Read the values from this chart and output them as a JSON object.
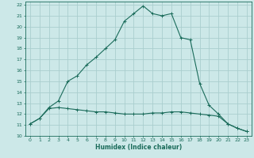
{
  "xlabel": "Humidex (Indice chaleur)",
  "bg_color": "#cce8e8",
  "line_color": "#1a6b5a",
  "grid_color": "#aacece",
  "xlim": [
    -0.5,
    23.5
  ],
  "ylim": [
    10,
    22.3
  ],
  "xticks": [
    0,
    1,
    2,
    3,
    4,
    5,
    6,
    7,
    8,
    9,
    10,
    11,
    12,
    13,
    14,
    15,
    16,
    17,
    18,
    19,
    20,
    21,
    22,
    23
  ],
  "yticks": [
    10,
    11,
    12,
    13,
    14,
    15,
    16,
    17,
    18,
    19,
    20,
    21,
    22
  ],
  "humidex_x": [
    0,
    1,
    2,
    3,
    4,
    5,
    6,
    7,
    8,
    9,
    10,
    11,
    12,
    13,
    14,
    15,
    16,
    17,
    18,
    19,
    20,
    21,
    22,
    23
  ],
  "humidex_y": [
    11.1,
    11.6,
    12.6,
    13.2,
    15.0,
    15.5,
    16.5,
    17.2,
    18.0,
    18.8,
    20.5,
    21.2,
    21.9,
    21.2,
    21.0,
    21.2,
    19.0,
    18.8,
    14.8,
    12.8,
    12.0,
    11.1,
    10.7,
    10.4
  ],
  "temp_x": [
    0,
    1,
    2,
    3,
    4,
    5,
    6,
    7,
    8,
    9,
    10,
    11,
    12,
    13,
    14,
    15,
    16,
    17,
    18,
    19,
    20,
    21,
    22,
    23
  ],
  "temp_y": [
    11.1,
    11.6,
    12.5,
    12.6,
    12.5,
    12.4,
    12.3,
    12.2,
    12.2,
    12.1,
    12.0,
    12.0,
    12.0,
    12.1,
    12.1,
    12.2,
    12.2,
    12.1,
    12.0,
    11.9,
    11.8,
    11.1,
    10.7,
    10.4
  ]
}
